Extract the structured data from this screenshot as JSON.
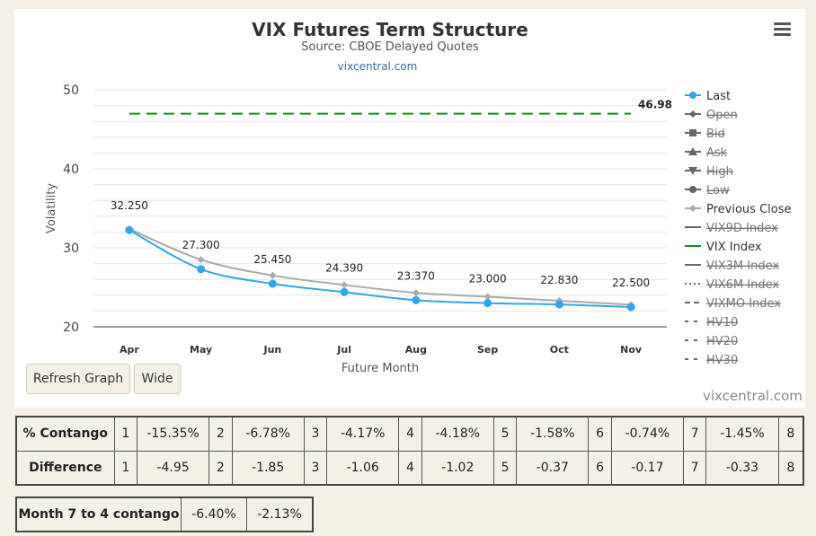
{
  "chart_data": {
    "type": "line",
    "title": "VIX Futures Term Structure",
    "subtitle": "Source: CBOE Delayed Quotes",
    "source_link": "vixcentral.com",
    "xlabel": "Future Month",
    "ylabel": "Volatility",
    "categories": [
      "Apr",
      "May",
      "Jun",
      "Jul",
      "Aug",
      "Sep",
      "Oct",
      "Nov"
    ],
    "ylim": [
      20,
      50
    ],
    "yticks": [
      20,
      30,
      40,
      50
    ],
    "grid": true,
    "legend_position": "right",
    "series": [
      {
        "name": "Last",
        "color": "#2fa6f0",
        "values": [
          32.25,
          27.3,
          25.45,
          24.39,
          23.37,
          23.0,
          22.83,
          22.5
        ],
        "labels": [
          "32.250",
          "27.300",
          "25.450",
          "24.390",
          "23.370",
          "23.000",
          "22.830",
          "22.500"
        ]
      },
      {
        "name": "Previous Close",
        "color": "#a9a9a9",
        "values": [
          32.4,
          28.5,
          26.5,
          25.3,
          24.3,
          23.8,
          23.3,
          22.8
        ]
      },
      {
        "name": "VIX Index",
        "color": "#1a8a1a",
        "value": 46.98,
        "label": "46.98",
        "style": "dashed"
      }
    ],
    "legend": [
      {
        "name": "Last",
        "marker": "circle",
        "color": "#2fa6f0",
        "enabled": true
      },
      {
        "name": "Open",
        "marker": "diamond",
        "color": "#666666",
        "enabled": false
      },
      {
        "name": "Bid",
        "marker": "square",
        "color": "#666666",
        "enabled": false
      },
      {
        "name": "Ask",
        "marker": "triangle",
        "color": "#666666",
        "enabled": false
      },
      {
        "name": "High",
        "marker": "triangle-down",
        "color": "#666666",
        "enabled": false
      },
      {
        "name": "Low",
        "marker": "circle",
        "color": "#666666",
        "enabled": false
      },
      {
        "name": "Previous Close",
        "marker": "diamond",
        "color": "#a9a9a9",
        "enabled": true
      },
      {
        "name": "VIX9D Index",
        "marker": "line",
        "color": "#666666",
        "enabled": false
      },
      {
        "name": "VIX Index",
        "marker": "line",
        "color": "#1a8a1a",
        "enabled": true
      },
      {
        "name": "VIX3M Index",
        "marker": "line",
        "color": "#666666",
        "enabled": false
      },
      {
        "name": "VIX6M Index",
        "marker": "dotted",
        "color": "#666666",
        "enabled": false
      },
      {
        "name": "VIXMO Index",
        "marker": "dashed",
        "color": "#666666",
        "enabled": false
      },
      {
        "name": "HV10",
        "marker": "dashdot",
        "color": "#666666",
        "enabled": false
      },
      {
        "name": "HV20",
        "marker": "dashdot",
        "color": "#666666",
        "enabled": false
      },
      {
        "name": "HV30",
        "marker": "dashdot",
        "color": "#666666",
        "enabled": false
      }
    ]
  },
  "buttons": {
    "refresh": "Refresh Graph",
    "wide": "Wide"
  },
  "credit": "vixcentral.com",
  "contango_table": {
    "rows": [
      {
        "label": "% Contango",
        "cells": [
          [
            "1",
            "-15.35%"
          ],
          [
            "2",
            "-6.78%"
          ],
          [
            "3",
            "-4.17%"
          ],
          [
            "4",
            "-4.18%"
          ],
          [
            "5",
            "-1.58%"
          ],
          [
            "6",
            "-0.74%"
          ],
          [
            "7",
            "-1.45%"
          ]
        ],
        "last": "8"
      },
      {
        "label": "Difference",
        "cells": [
          [
            "1",
            "-4.95"
          ],
          [
            "2",
            "-1.85"
          ],
          [
            "3",
            "-1.06"
          ],
          [
            "4",
            "-1.02"
          ],
          [
            "5",
            "-0.37"
          ],
          [
            "6",
            "-0.17"
          ],
          [
            "7",
            "-0.33"
          ]
        ],
        "last": "8"
      }
    ]
  },
  "month_table": {
    "label": "Month 7 to 4 contango",
    "values": [
      "-6.40%",
      "-2.13%"
    ]
  }
}
